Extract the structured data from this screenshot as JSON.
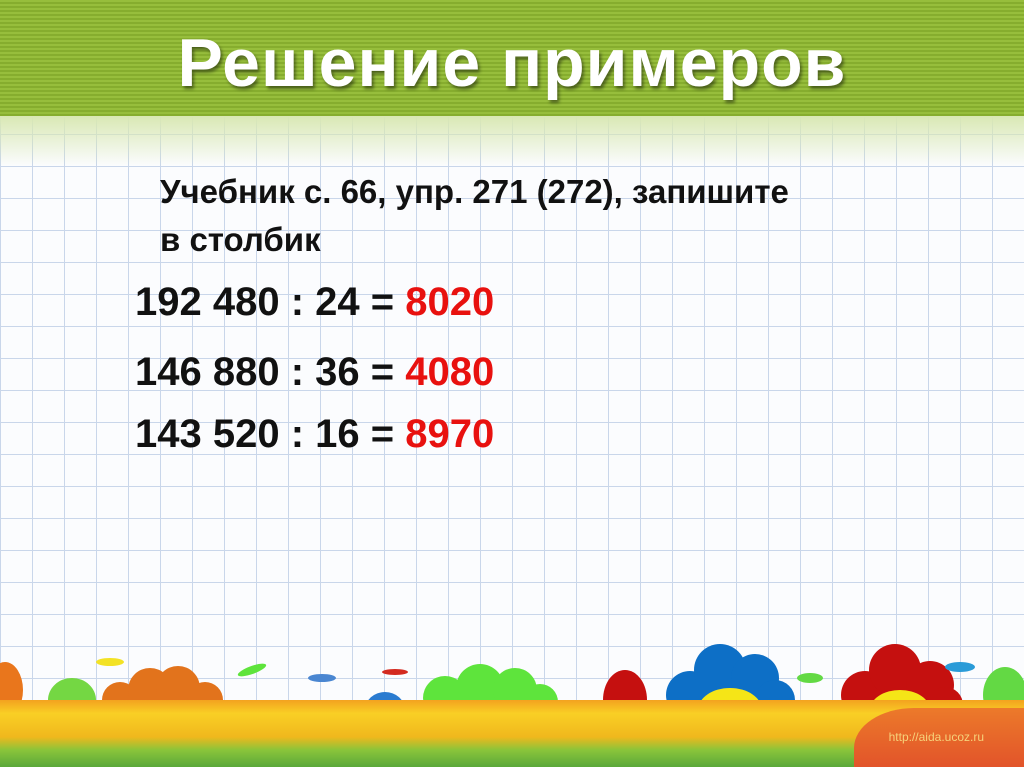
{
  "slide": {
    "title": "Решение примеров",
    "task_line1": "Учебник с. 66, упр. 271 (272), запишите",
    "task_line2": "в столбик",
    "equations": [
      {
        "expression": "192 480 : 24 = ",
        "answer": "8020"
      },
      {
        "expression": "146 880 : 36 = ",
        "answer": "4080"
      },
      {
        "expression": "143 520 : 16 = ",
        "answer": "8970"
      }
    ],
    "watermark": "http://aida.ucoz.ru",
    "colors": {
      "answer": "#e8110f",
      "header": "#97be3c"
    }
  }
}
